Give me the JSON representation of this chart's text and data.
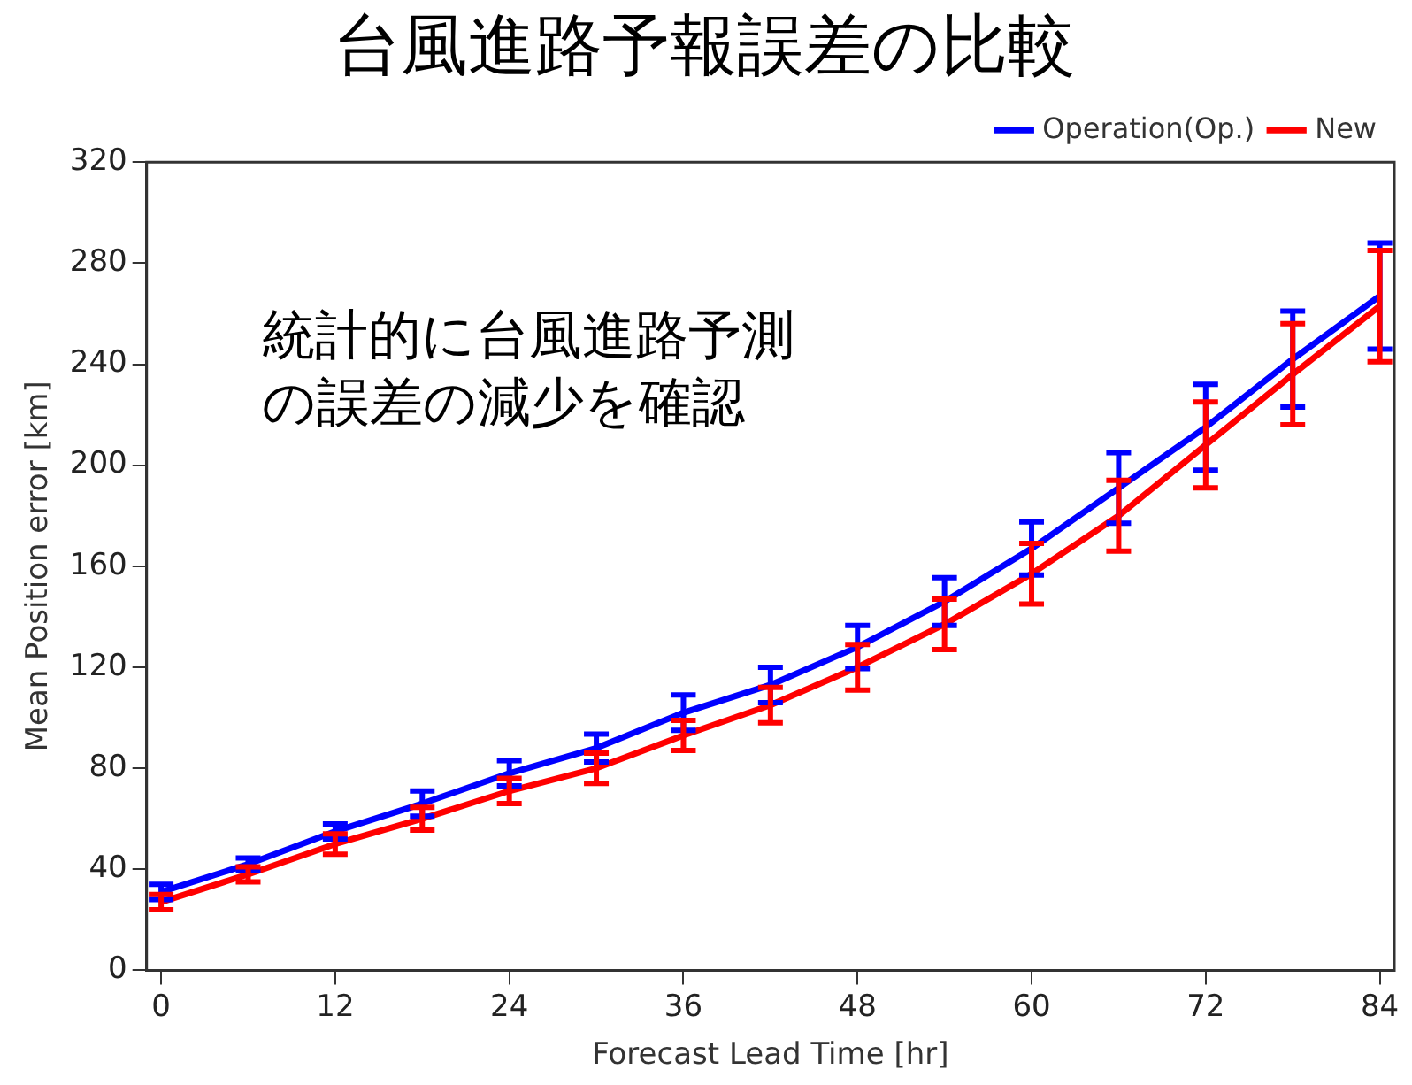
{
  "chart_data": {
    "type": "line",
    "title": "台風進路予報誤差の比較",
    "xlabel": "Forecast Lead Time [hr]",
    "ylabel": "Mean Position error [km]",
    "x": [
      0,
      6,
      12,
      18,
      24,
      30,
      36,
      42,
      48,
      54,
      60,
      66,
      72,
      78,
      84
    ],
    "series": [
      {
        "name": "Operation(Op.)",
        "color": "#0000ff",
        "values": [
          31,
          42,
          55,
          66,
          78,
          88,
          102,
          113,
          128,
          146,
          167,
          191,
          215,
          242,
          267
        ],
        "errors": [
          3,
          2.5,
          3,
          5,
          5,
          5.5,
          7,
          7,
          8.5,
          9.5,
          10.5,
          14,
          17,
          19,
          21
        ]
      },
      {
        "name": "New",
        "color": "#ff0000",
        "values": [
          27,
          38,
          50,
          60,
          71,
          80,
          93,
          105,
          120,
          137,
          157,
          180,
          208,
          236,
          263
        ],
        "errors": [
          3,
          3,
          4,
          4.5,
          5,
          6,
          6,
          7,
          9,
          10,
          12,
          14,
          17,
          20,
          22
        ]
      }
    ],
    "xlim": [
      -1,
      85
    ],
    "xticks": [
      0,
      12,
      24,
      36,
      48,
      60,
      72,
      84
    ],
    "ylim": [
      0,
      320
    ],
    "yticks": [
      0,
      40,
      80,
      120,
      160,
      200,
      240,
      280,
      320
    ],
    "grid": false,
    "legend": "top right",
    "line_style": "solid",
    "annotations": [
      "統計的に台風進路予測の誤差の減少を確認"
    ]
  }
}
